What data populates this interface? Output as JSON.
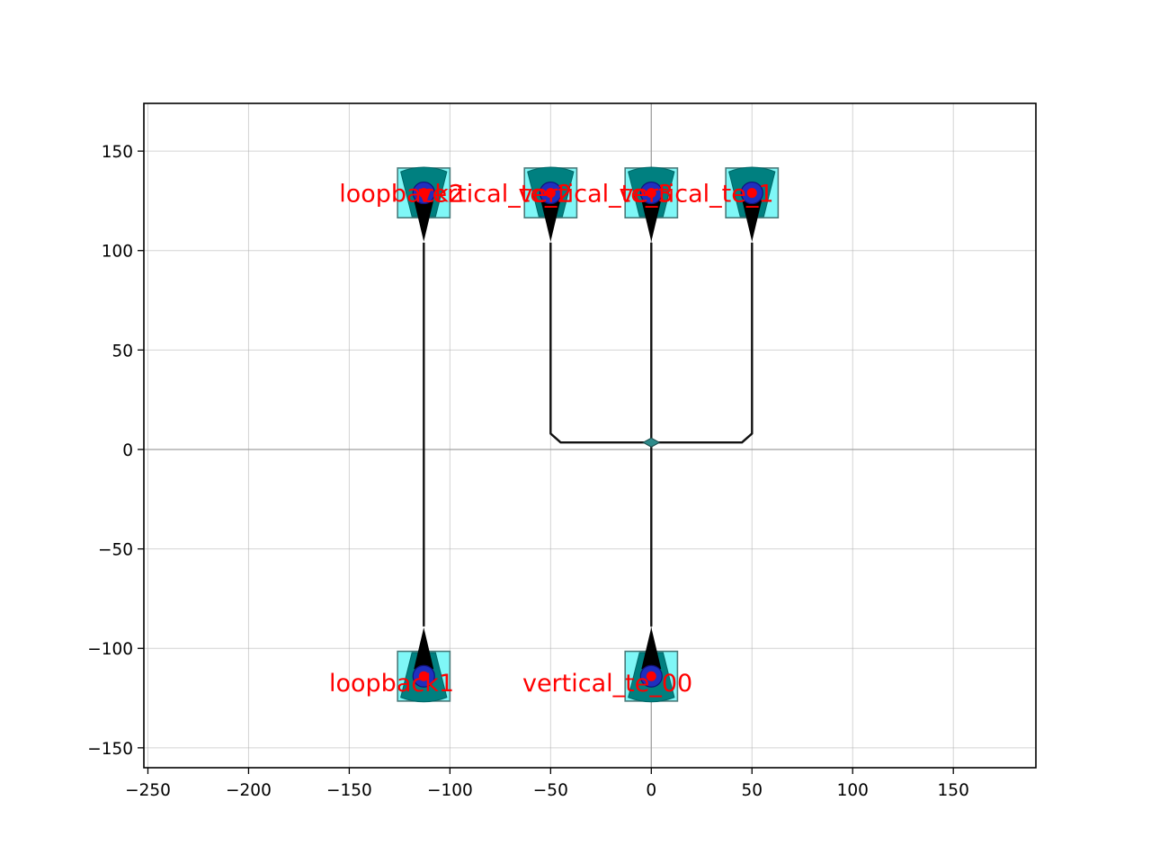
{
  "chart_data": {
    "type": "layout",
    "xlim": [
      -252,
      191
    ],
    "ylim": [
      -160,
      174
    ],
    "grid": true,
    "xticks": [
      -250,
      -200,
      -150,
      -100,
      -50,
      0,
      50,
      100,
      150
    ],
    "yticks": [
      -150,
      -100,
      -50,
      0,
      50,
      100,
      150
    ],
    "xtick_labels": [
      "−250",
      "−200",
      "−150",
      "−100",
      "−50",
      "0",
      "50",
      "100",
      "150"
    ],
    "ytick_labels": [
      "−150",
      "−100",
      "−50",
      "0",
      "50",
      "100",
      "150"
    ],
    "grating_couplers": [
      {
        "name": "loopback2",
        "x": -113,
        "y": 129,
        "orientation": "down"
      },
      {
        "name": "vertical_te_2",
        "x": -50,
        "y": 129,
        "orientation": "down"
      },
      {
        "name": "vertical_te_3",
        "x": 0,
        "y": 129,
        "orientation": "down"
      },
      {
        "name": "vertical_te_1",
        "x": 50,
        "y": 129,
        "orientation": "down"
      },
      {
        "name": "loopback1",
        "x": -113,
        "y": -114,
        "orientation": "up"
      },
      {
        "name": "vertical_te_00",
        "x": 0,
        "y": -114,
        "orientation": "up"
      }
    ],
    "labels": [
      {
        "text": "loopback2",
        "x": -155,
        "y": 129
      },
      {
        "text": "vertical_te_2",
        "x": -116,
        "y": 129
      },
      {
        "text": "vertical_te_3",
        "x": -66,
        "y": 129
      },
      {
        "text": "vertical_te_1",
        "x": -16,
        "y": 129
      },
      {
        "text": "loopback1",
        "x": -160,
        "y": -117
      },
      {
        "text": "vertical_te_00",
        "x": -64,
        "y": -117
      }
    ],
    "routes": [
      {
        "points": [
          [
            -113,
            104
          ],
          [
            -113,
            -89
          ]
        ]
      },
      {
        "points": [
          [
            0,
            104
          ],
          [
            0,
            -89
          ]
        ]
      },
      {
        "points": [
          [
            -50,
            104
          ],
          [
            -50,
            8
          ],
          [
            -45,
            3.5
          ],
          [
            -5,
            3.5
          ],
          [
            0,
            3.5
          ]
        ]
      },
      {
        "points": [
          [
            50,
            104
          ],
          [
            50,
            8
          ],
          [
            45,
            3.5
          ],
          [
            5,
            3.5
          ],
          [
            0,
            3.5
          ]
        ]
      }
    ],
    "splitter": {
      "x": 0,
      "y": 3.5
    }
  }
}
